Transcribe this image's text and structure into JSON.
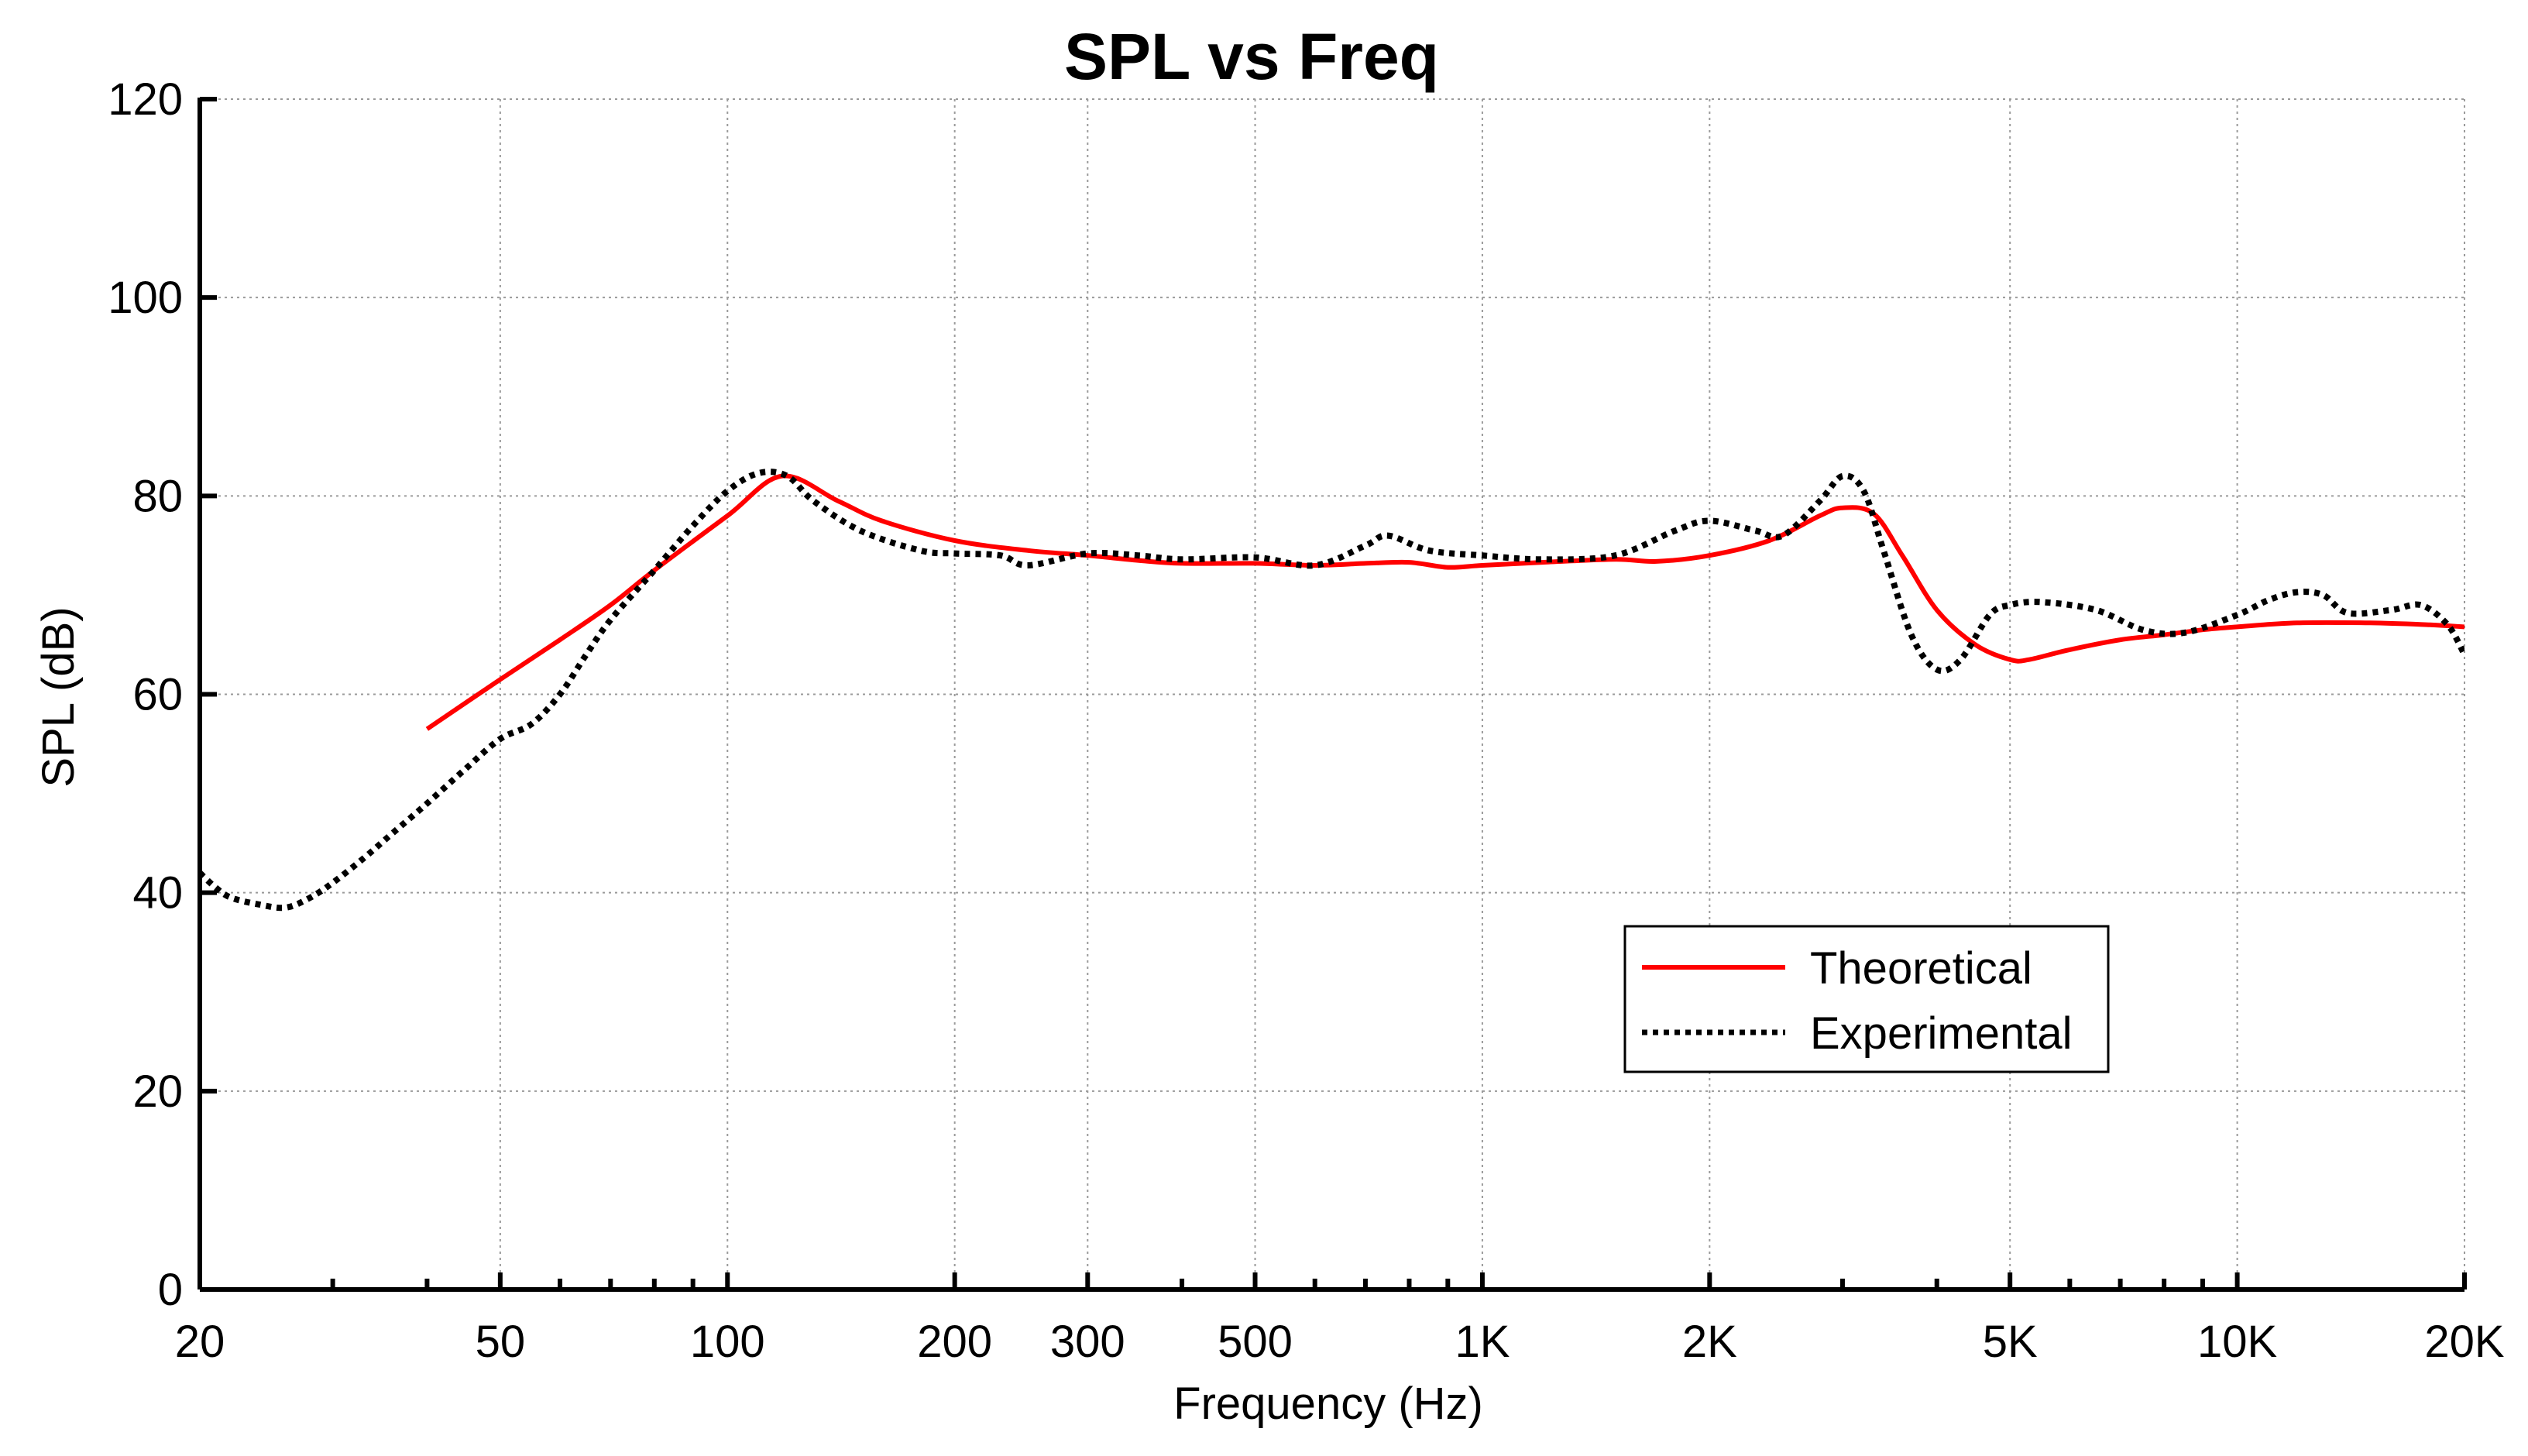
{
  "chart_data": {
    "type": "line",
    "title": "SPL vs Freq",
    "xlabel": "Frequency (Hz)",
    "ylabel": "SPL (dB)",
    "xscale": "log",
    "xlim": [
      20,
      20000
    ],
    "ylim": [
      0,
      120
    ],
    "grid": true,
    "legend_position": "bottom-right",
    "x_ticks": [
      {
        "value": 20,
        "label": "20"
      },
      {
        "value": 50,
        "label": "50"
      },
      {
        "value": 100,
        "label": "100"
      },
      {
        "value": 200,
        "label": "200"
      },
      {
        "value": 300,
        "label": "300"
      },
      {
        "value": 500,
        "label": "500"
      },
      {
        "value": 1000,
        "label": "1K"
      },
      {
        "value": 2000,
        "label": "2K"
      },
      {
        "value": 5000,
        "label": "5K"
      },
      {
        "value": 10000,
        "label": "10K"
      },
      {
        "value": 20000,
        "label": "20K"
      }
    ],
    "x_minor_ticks": [
      30,
      40,
      60,
      70,
      80,
      90,
      400,
      600,
      700,
      800,
      900,
      3000,
      4000,
      6000,
      7000,
      8000,
      9000
    ],
    "y_ticks": [
      0,
      20,
      40,
      60,
      80,
      100,
      120
    ],
    "series": [
      {
        "name": "Theoretical",
        "color": "#ff0000",
        "style": "solid",
        "points": [
          [
            40,
            56.5
          ],
          [
            50,
            61.5
          ],
          [
            60,
            65.5
          ],
          [
            70,
            69.0
          ],
          [
            80,
            72.5
          ],
          [
            100,
            78.0
          ],
          [
            118,
            82.0
          ],
          [
            140,
            79.5
          ],
          [
            160,
            77.5
          ],
          [
            200,
            75.5
          ],
          [
            250,
            74.5
          ],
          [
            300,
            74.0
          ],
          [
            350,
            73.5
          ],
          [
            400,
            73.2
          ],
          [
            500,
            73.2
          ],
          [
            600,
            73.0
          ],
          [
            700,
            73.2
          ],
          [
            800,
            73.3
          ],
          [
            900,
            72.8
          ],
          [
            1000,
            73.0
          ],
          [
            1200,
            73.3
          ],
          [
            1500,
            73.6
          ],
          [
            1700,
            73.4
          ],
          [
            2000,
            74.0
          ],
          [
            2400,
            75.5
          ],
          [
            2800,
            78.0
          ],
          [
            3000,
            78.8
          ],
          [
            3300,
            78.2
          ],
          [
            3600,
            74.0
          ],
          [
            4000,
            68.5
          ],
          [
            4500,
            65.0
          ],
          [
            5000,
            63.5
          ],
          [
            5300,
            63.5
          ],
          [
            6000,
            64.5
          ],
          [
            7000,
            65.5
          ],
          [
            8000,
            66.0
          ],
          [
            9000,
            66.5
          ],
          [
            10000,
            66.8
          ],
          [
            12000,
            67.2
          ],
          [
            15000,
            67.2
          ],
          [
            18000,
            67.0
          ],
          [
            20000,
            66.8
          ]
        ]
      },
      {
        "name": "Experimental",
        "color": "#000000",
        "style": "dotted",
        "points": [
          [
            20,
            42.0
          ],
          [
            21,
            40.5
          ],
          [
            22,
            39.5
          ],
          [
            24,
            38.8
          ],
          [
            26,
            38.5
          ],
          [
            28,
            39.5
          ],
          [
            30,
            41.0
          ],
          [
            33,
            43.5
          ],
          [
            36,
            46.0
          ],
          [
            40,
            49.0
          ],
          [
            45,
            52.5
          ],
          [
            50,
            55.5
          ],
          [
            55,
            57.0
          ],
          [
            60,
            60.0
          ],
          [
            65,
            64.0
          ],
          [
            70,
            67.5
          ],
          [
            80,
            72.5
          ],
          [
            90,
            77.0
          ],
          [
            100,
            80.5
          ],
          [
            110,
            82.3
          ],
          [
            120,
            82.0
          ],
          [
            130,
            79.5
          ],
          [
            150,
            76.5
          ],
          [
            180,
            74.5
          ],
          [
            200,
            74.2
          ],
          [
            230,
            74.0
          ],
          [
            250,
            73.0
          ],
          [
            300,
            74.2
          ],
          [
            350,
            74.0
          ],
          [
            400,
            73.6
          ],
          [
            500,
            73.8
          ],
          [
            600,
            73.0
          ],
          [
            700,
            75.0
          ],
          [
            750,
            76.0
          ],
          [
            850,
            74.5
          ],
          [
            1000,
            74.0
          ],
          [
            1200,
            73.6
          ],
          [
            1500,
            74.0
          ],
          [
            1800,
            76.5
          ],
          [
            2000,
            77.5
          ],
          [
            2300,
            76.5
          ],
          [
            2500,
            76.0
          ],
          [
            2800,
            79.5
          ],
          [
            3000,
            82.0
          ],
          [
            3200,
            80.5
          ],
          [
            3400,
            74.5
          ],
          [
            3700,
            66.0
          ],
          [
            4000,
            62.5
          ],
          [
            4300,
            63.5
          ],
          [
            4700,
            68.0
          ],
          [
            5000,
            69.0
          ],
          [
            5500,
            69.3
          ],
          [
            6500,
            68.5
          ],
          [
            7500,
            66.5
          ],
          [
            8500,
            66.2
          ],
          [
            10000,
            68.0
          ],
          [
            11000,
            69.5
          ],
          [
            12000,
            70.3
          ],
          [
            13000,
            70.0
          ],
          [
            14000,
            68.2
          ],
          [
            16000,
            68.5
          ],
          [
            17500,
            69.0
          ],
          [
            19000,
            67.0
          ],
          [
            20000,
            64.0
          ]
        ]
      }
    ]
  }
}
